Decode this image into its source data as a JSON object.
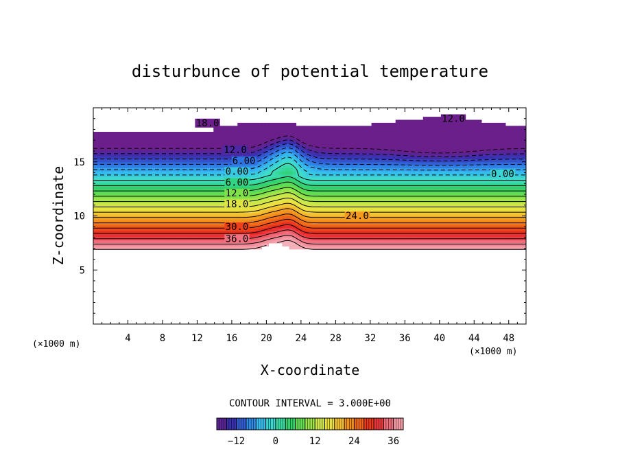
{
  "chart_data": {
    "type": "heatmap",
    "title": "disturbunce of potential temperature",
    "xlabel": "X-coordinate",
    "ylabel": "Z-coordinate",
    "x_unit": "(×1000 m)",
    "xlim": [
      0,
      50
    ],
    "ylim": [
      0,
      20
    ],
    "x_ticks": [
      4,
      8,
      12,
      16,
      20,
      24,
      28,
      32,
      36,
      40,
      44,
      48
    ],
    "y_ticks": [
      5,
      10,
      15
    ],
    "contour_interval_label": "CONTOUR INTERVAL = 3.000E+00",
    "colorbar": {
      "range": [
        -18,
        39
      ],
      "ticks": [
        -12,
        0,
        12,
        24,
        36
      ],
      "colors": [
        "#6a1f8a",
        "#3a2fb0",
        "#2f6fe0",
        "#35b8f0",
        "#3fe0c8",
        "#2fd070",
        "#6ee04a",
        "#c8e84a",
        "#f0e040",
        "#f4a020",
        "#f06018",
        "#e82020",
        "#f07080",
        "#f4b0b8"
      ]
    },
    "contour_labels": [
      {
        "text": "18.0",
        "x": 13.2,
        "y": 18.3
      },
      {
        "text": "12.0",
        "x": 41.6,
        "y": 18.7
      },
      {
        "text": "12.0",
        "x": 16.4,
        "y": 15.8
      },
      {
        "text": "6.00",
        "x": 17.4,
        "y": 14.8
      },
      {
        "text": "0.00",
        "x": 16.6,
        "y": 13.8
      },
      {
        "text": "0.00",
        "x": 47.3,
        "y": 13.6
      },
      {
        "text": "6.00",
        "x": 16.6,
        "y": 12.8
      },
      {
        "text": "12.0",
        "x": 16.6,
        "y": 11.8
      },
      {
        "text": "18.0",
        "x": 16.6,
        "y": 10.8
      },
      {
        "text": "24.0",
        "x": 30.5,
        "y": 9.7
      },
      {
        "text": "30.0",
        "x": 16.6,
        "y": 8.7
      },
      {
        "text": "36.0",
        "x": 16.6,
        "y": 7.6
      }
    ],
    "contour_levels": [
      -18,
      -15,
      -12,
      -9,
      -6,
      -3,
      0,
      3,
      6,
      9,
      12,
      15,
      18,
      21,
      24,
      27,
      30,
      33,
      36,
      39
    ],
    "field_lower_boundary_z": 6.9,
    "field_upper_boundary_z": 19.6
  }
}
